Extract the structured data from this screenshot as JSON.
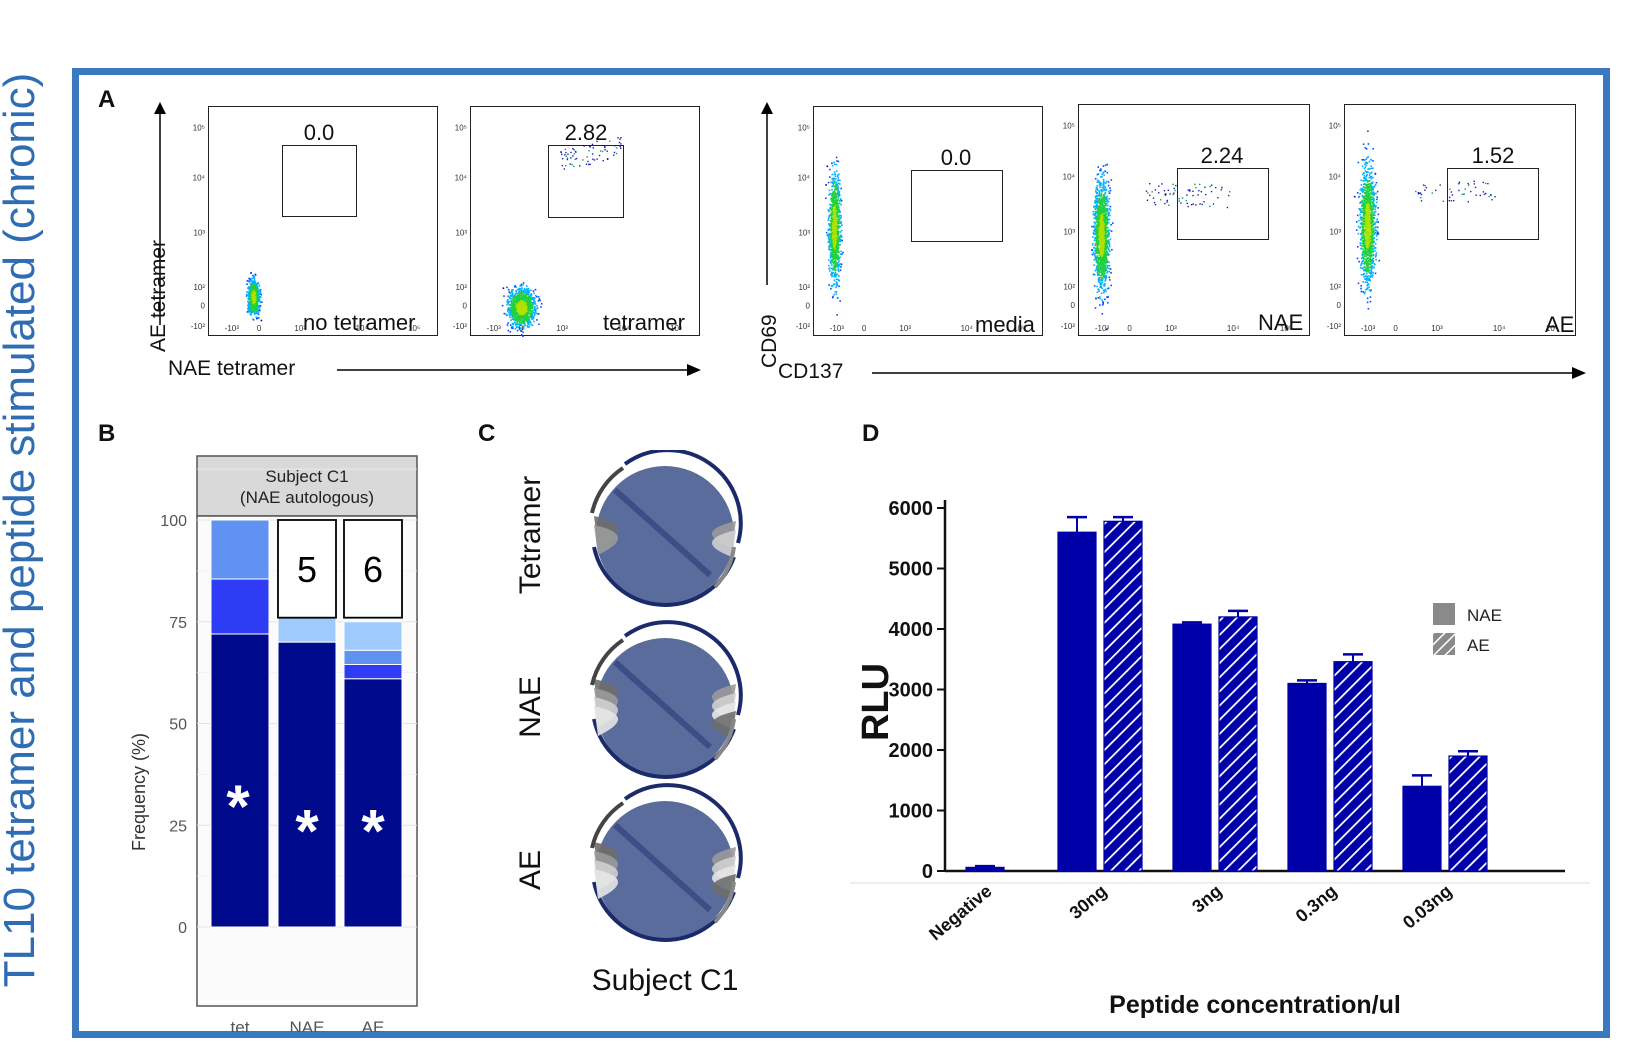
{
  "side_title": "TL10 tetramer and peptide stimulated (chronic)",
  "panels": {
    "a": "A",
    "b": "B",
    "c": "C",
    "d": "D"
  },
  "panel_a": {
    "left_group": {
      "y_axis_label": "AE tetramer",
      "x_axis_label": "NAE tetramer"
    },
    "right_group": {
      "y_axis_label": "CD69",
      "x_axis_label": "CD137"
    },
    "plots": [
      {
        "label": "no tetramer",
        "gate_value": "0.0"
      },
      {
        "label": "tetramer",
        "gate_value": "2.82"
      },
      {
        "label": "media",
        "gate_value": "0.0"
      },
      {
        "label": "NAE",
        "gate_value": "2.24"
      },
      {
        "label": "AE",
        "gate_value": "1.52"
      }
    ],
    "y_ticks": [
      "10⁵",
      "10⁴",
      "10³",
      "10²",
      "0",
      "-10²"
    ],
    "x_ticks": [
      "-10³",
      "0",
      "10³",
      "10⁴",
      "10⁵"
    ]
  },
  "chart_data": [
    {
      "panel": "B",
      "type": "bar",
      "stacked": true,
      "facet_title": "Subject C1\n(NAE autologous)",
      "facet_title_line1": "Subject C1",
      "facet_title_line2": "(NAE autologous)",
      "ylabel": "Frequency (%)",
      "ylim": [
        0,
        100
      ],
      "y_ticks": [
        "100",
        "75",
        "50",
        "25",
        "0"
      ],
      "categories": [
        "tet",
        "NAE",
        "AE"
      ],
      "segments": [
        {
          "category": "tet",
          "stack": [
            {
              "value": 72,
              "color": "#000a8c"
            },
            {
              "value": 13.5,
              "color": "#2e3cf5"
            },
            {
              "value": 14.5,
              "color": "#5f92f2"
            }
          ]
        },
        {
          "category": "NAE",
          "stack": [
            {
              "value": 70,
              "color": "#000a8c"
            },
            {
              "value": 8.5,
              "color": "#9ecbfb"
            }
          ]
        },
        {
          "category": "AE",
          "stack": [
            {
              "value": 61,
              "color": "#000a8c"
            },
            {
              "value": 3.5,
              "color": "#2e3cf5"
            },
            {
              "value": 3.5,
              "color": "#5f92f2"
            },
            {
              "value": 7,
              "color": "#9ecbfb"
            }
          ]
        }
      ],
      "box_labels": [
        "",
        "5",
        "6"
      ],
      "star_label": "*"
    },
    {
      "panel": "C",
      "type": "chord",
      "row_labels": [
        "Tetramer",
        "NAE",
        "AE"
      ],
      "footer": "Subject C1"
    },
    {
      "panel": "D",
      "type": "bar",
      "title": "",
      "xlabel": "Peptide concentration/ul",
      "ylabel": "RLU",
      "ylim": [
        0,
        6000
      ],
      "y_ticks": [
        "0",
        "1000",
        "2000",
        "3000",
        "4000",
        "5000",
        "6000"
      ],
      "categories": [
        "Negative",
        "30ng",
        "3ng",
        "0.3ng",
        "0.03ng"
      ],
      "series": [
        {
          "name": "NAE",
          "values": [
            60,
            5600,
            4080,
            3100,
            1400
          ],
          "errors": [
            20,
            250,
            30,
            50,
            180
          ],
          "color": "#0000a8",
          "pattern": "solid"
        },
        {
          "name": "AE",
          "values": [
            null,
            5780,
            4200,
            3460,
            1900
          ],
          "errors": [
            null,
            70,
            100,
            120,
            80
          ],
          "color": "#0000a8",
          "pattern": "hatched"
        }
      ],
      "legend": [
        "NAE",
        "AE"
      ],
      "legend_position": "right"
    }
  ]
}
